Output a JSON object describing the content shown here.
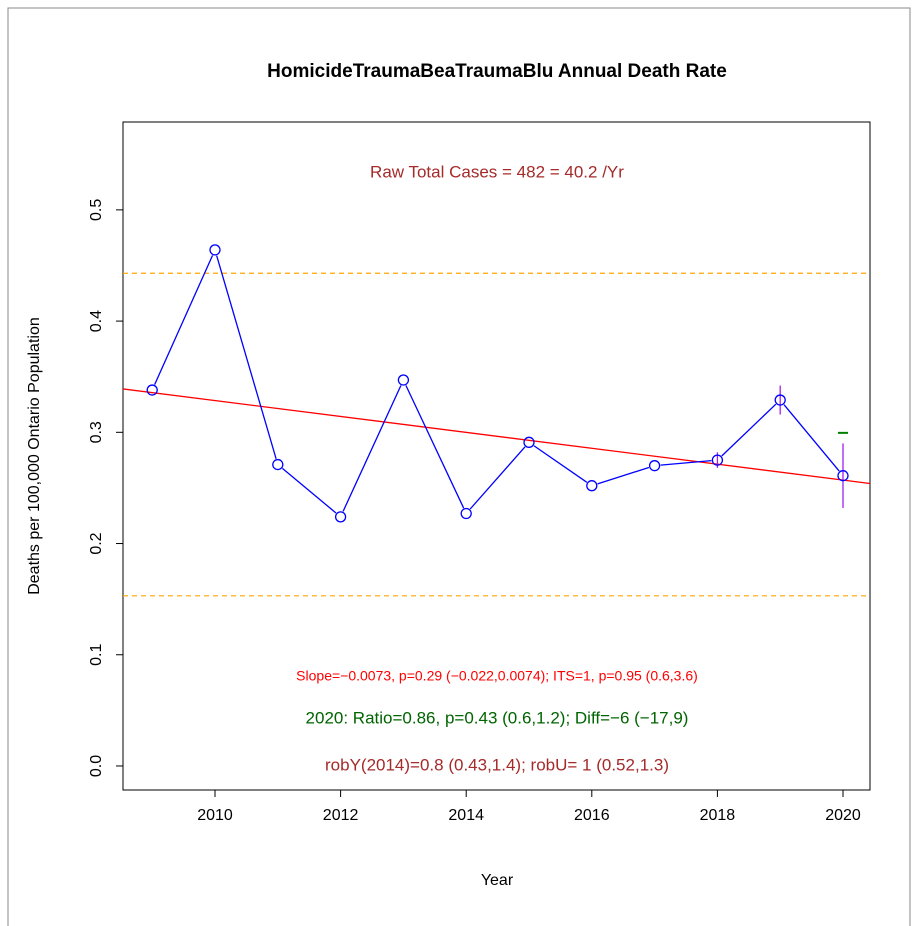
{
  "chart_data": {
    "type": "line",
    "title": "HomicideTraumaBeaTraumaBlu Annual Death Rate",
    "xlabel": "Year",
    "ylabel": "Deaths per 100,000 Ontario Population",
    "x": [
      2009,
      2010,
      2011,
      2012,
      2013,
      2014,
      2015,
      2016,
      2017,
      2018,
      2019,
      2020
    ],
    "values": [
      0.338,
      0.464,
      0.271,
      0.224,
      0.347,
      0.227,
      0.291,
      0.252,
      0.27,
      0.275,
      0.329,
      0.261
    ],
    "color": "#0000ff",
    "errors": [
      null,
      null,
      null,
      null,
      null,
      null,
      null,
      null,
      null,
      0.007,
      0.013,
      0.029
    ],
    "error_color": "#a020f0",
    "trend": {
      "x": [
        2008.535,
        2020.43
      ],
      "values": [
        0.339,
        0.254
      ],
      "color": "#ff0000"
    },
    "hlines": {
      "values": [
        0.443,
        0.153
      ],
      "color": "#ffa500"
    },
    "marker": {
      "x": 2020,
      "value": 0.2995,
      "color": "#008000"
    },
    "annotations": [
      {
        "text": "Raw Total Cases = 482 = 40.2 /Yr",
        "color": "#a52a2a"
      },
      {
        "text": "Slope=−0.0073, p=0.29 (−0.022,0.0074);  ITS=1, p=0.95 (0.6,3.6)",
        "color": "#ff0000"
      },
      {
        "text": "2020:  Ratio=0.86, p=0.43 (0.6,1.2);  Diff=−6 (−17,9)",
        "color": "#006400"
      },
      {
        "text": "robY(2014)=0.8 (0.43,1.4); robU=  1 (0.52,1.3)",
        "color": "#a52a2a"
      }
    ],
    "xlim": [
      2008.535,
      2020.43
    ],
    "ylim": [
      -0.0216,
      0.579
    ],
    "xticks": [
      2010,
      2012,
      2014,
      2016,
      2018,
      2020
    ],
    "yticks": [
      {
        "value": 0,
        "label": "0.0"
      },
      0.1,
      0.2,
      0.3,
      0.4,
      0.5
    ]
  }
}
